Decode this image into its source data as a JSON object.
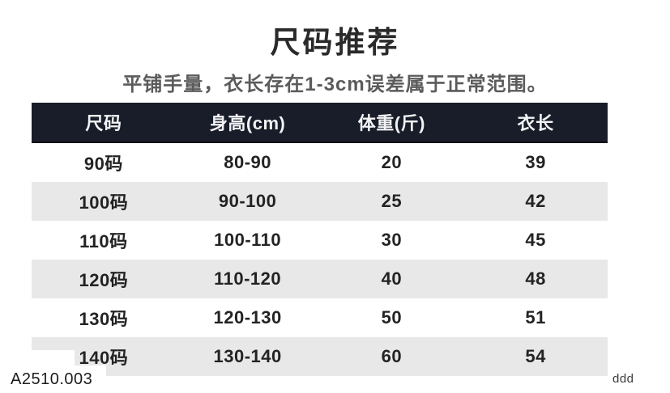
{
  "page": {
    "title": "尺码推荐",
    "subtitle": "平铺手量，衣长存在1-3cm误差属于正常范围。"
  },
  "table": {
    "headers": [
      "尺码",
      "身高(cm)",
      "体重(斤)",
      "衣长"
    ],
    "rows": [
      {
        "size": "90码",
        "height": "80-90",
        "weight": "20",
        "length": "39"
      },
      {
        "size": "100码",
        "height": "90-100",
        "weight": "25",
        "length": "42"
      },
      {
        "size": "110码",
        "height": "100-110",
        "weight": "30",
        "length": "45"
      },
      {
        "size": "120码",
        "height": "110-120",
        "weight": "40",
        "length": "48"
      },
      {
        "size": "130码",
        "height": "120-130",
        "weight": "50",
        "length": "51"
      },
      {
        "size": "140码",
        "height": "130-140",
        "weight": "60",
        "length": "54"
      }
    ]
  },
  "overlay": {
    "sku": "A2510.003"
  },
  "watermark": "ddd",
  "colors": {
    "header_bg": "#191d29",
    "row_alt": "#e8e8e8",
    "title_color": "#2a2a2a",
    "subtitle_color": "#5b5b5b"
  }
}
